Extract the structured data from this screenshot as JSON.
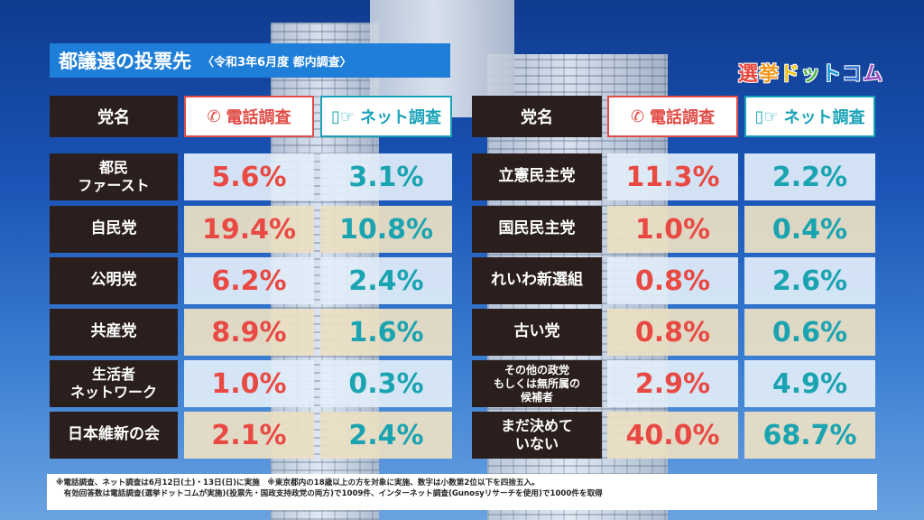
{
  "title": "都議選の投票先",
  "subtitle": "〈令和3年6月度 都内調査〉",
  "logo": "選挙ドットコム",
  "headers": {
    "party": "党名",
    "phone": "電話調査",
    "net": "ネット調査"
  },
  "chart_data": {
    "type": "table",
    "columns": [
      "党名",
      "電話調査",
      "ネット調査"
    ],
    "rows": [
      {
        "party": "都民\nファースト",
        "phone": "5.6%",
        "net": "3.1%"
      },
      {
        "party": "自民党",
        "phone": "19.4%",
        "net": "10.8%"
      },
      {
        "party": "公明党",
        "phone": "6.2%",
        "net": "2.4%"
      },
      {
        "party": "共産党",
        "phone": "8.9%",
        "net": "1.6%"
      },
      {
        "party": "生活者\nネットワーク",
        "phone": "1.0%",
        "net": "0.3%"
      },
      {
        "party": "日本維新の会",
        "phone": "2.1%",
        "net": "2.4%"
      },
      {
        "party": "立憲民主党",
        "phone": "11.3%",
        "net": "2.2%"
      },
      {
        "party": "国民民主党",
        "phone": "1.0%",
        "net": "0.4%"
      },
      {
        "party": "れいわ新選組",
        "phone": "0.8%",
        "net": "2.6%"
      },
      {
        "party": "古い党",
        "phone": "0.8%",
        "net": "0.6%"
      },
      {
        "party": "その他の政党\nもしくは無所属の\n候補者",
        "phone": "2.9%",
        "net": "4.9%"
      },
      {
        "party": "まだ決めて\nいない",
        "phone": "40.0%",
        "net": "68.7%"
      }
    ]
  },
  "footnote": [
    "※電話調査、ネット調査は6月12日(土)・13日(日)に実施　※東京都内の18歳以上の方を対象に実施、数字は小数第2位以下を四捨五入。",
    "　有効回答数は電話調査(選挙ドットコムが実施)(投票先・国政支持政党の両方)で1009件、インターネット調査(Gunosyリサーチを使用)で1000件を取得"
  ]
}
